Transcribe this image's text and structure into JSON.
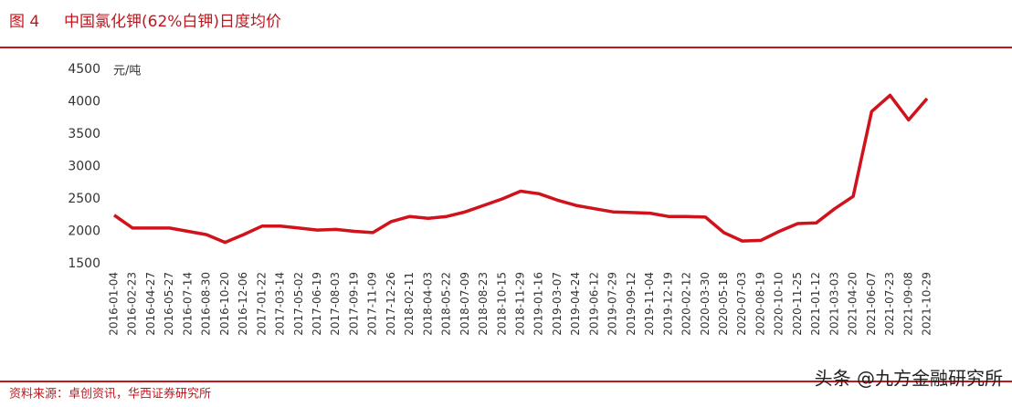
{
  "chart_data": {
    "type": "line",
    "figure_label": "图 4",
    "title": "中国氯化钾(62%白钾)日度均价",
    "y_unit": "元/吨",
    "source": "资料来源：卓创资讯，华西证券研究所",
    "watermark": "头条 @九方金融研究所",
    "color": "#d0121b",
    "categories": [
      "2016-01-04",
      "2016-02-23",
      "2016-04-27",
      "2016-05-27",
      "2016-07-14",
      "2016-08-30",
      "2016-10-20",
      "2016-12-06",
      "2017-01-22",
      "2017-03-14",
      "2017-05-02",
      "2017-06-19",
      "2017-08-03",
      "2017-09-19",
      "2017-11-09",
      "2017-12-26",
      "2018-02-11",
      "2018-04-03",
      "2018-05-22",
      "2018-07-09",
      "2018-08-23",
      "2018-10-15",
      "2018-11-29",
      "2019-01-16",
      "2019-03-07",
      "2019-04-24",
      "2019-06-12",
      "2019-07-29",
      "2019-09-12",
      "2019-11-04",
      "2019-12-19",
      "2020-02-12",
      "2020-03-30",
      "2020-05-18",
      "2020-07-03",
      "2020-08-19",
      "2020-10-10",
      "2020-11-25",
      "2021-01-12",
      "2021-03-03",
      "2021-04-20",
      "2021-06-07",
      "2021-07-23",
      "2021-09-08",
      "2021-10-29"
    ],
    "values": [
      2250,
      2050,
      2050,
      2050,
      2000,
      1950,
      1830,
      1950,
      2080,
      2080,
      2050,
      2020,
      2030,
      2000,
      1980,
      2150,
      2230,
      2200,
      2230,
      2300,
      2400,
      2500,
      2620,
      2580,
      2480,
      2400,
      2350,
      2300,
      2290,
      2280,
      2230,
      2230,
      2220,
      1980,
      1850,
      1860,
      2000,
      2120,
      2130,
      2350,
      2540,
      3850,
      4100,
      3720,
      4050
    ],
    "ylim": [
      1500,
      4500
    ],
    "yticks": [
      1500,
      2000,
      2500,
      3000,
      3500,
      4000,
      4500
    ]
  }
}
